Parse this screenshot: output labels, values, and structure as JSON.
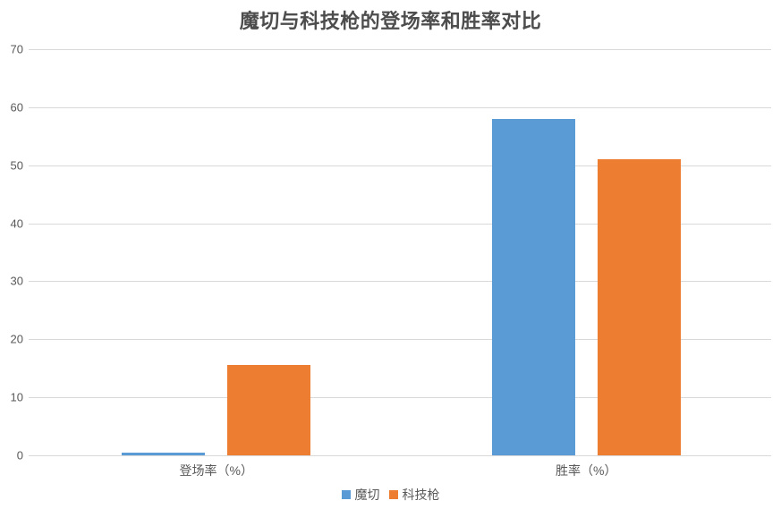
{
  "chart_data": {
    "type": "bar",
    "title": "魔切与科技枪的登场率和胜率对比",
    "categories": [
      "登场率（%）",
      "胜率（%）"
    ],
    "series": [
      {
        "name": "魔切",
        "color": "#5B9BD5",
        "values": [
          0.5,
          58
        ]
      },
      {
        "name": "科技枪",
        "color": "#ED7D31",
        "values": [
          15.6,
          51
        ]
      }
    ],
    "ylim": [
      0,
      70
    ],
    "yticks": [
      0,
      10,
      20,
      30,
      40,
      50,
      60,
      70
    ],
    "xlabel": "",
    "ylabel": "",
    "grid": true,
    "legend_position": "bottom",
    "legend_entries": [
      "魔切",
      "科技枪"
    ]
  },
  "colors": {
    "background": "#ffffff",
    "gridline": "#d9d9d9",
    "axis_text": "#595959",
    "title_text": "#4d4d4d"
  }
}
